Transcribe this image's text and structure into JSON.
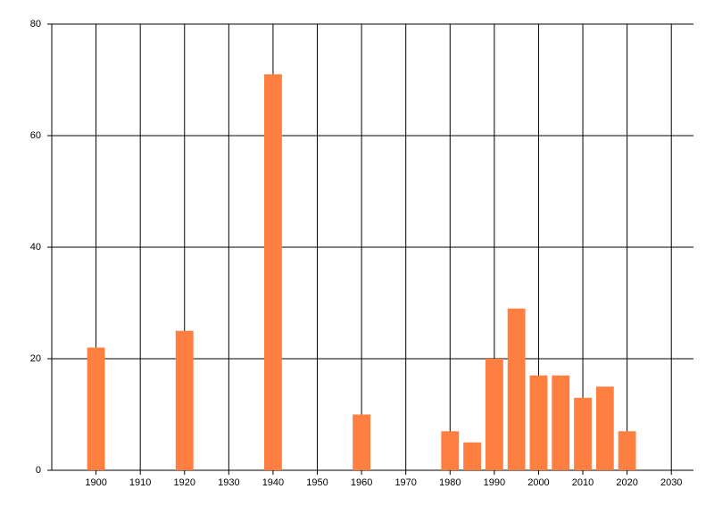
{
  "chart_data": {
    "type": "bar",
    "x": [
      1900,
      1920,
      1940,
      1960,
      1980,
      1985,
      1990,
      1995,
      2000,
      2005,
      2010,
      2015,
      2020
    ],
    "values": [
      22,
      25,
      71,
      10,
      7,
      5,
      20,
      29,
      17,
      17,
      13,
      15,
      7
    ],
    "color": "#ff7f40",
    "xlim": [
      1890,
      2035
    ],
    "xticks": [
      1900,
      1910,
      1920,
      1930,
      1940,
      1950,
      1960,
      1970,
      1980,
      1990,
      2000,
      2010,
      2020,
      2030
    ],
    "ylim": [
      0,
      80
    ],
    "yticks": [
      0,
      20,
      40,
      60,
      80
    ],
    "grid": true
  }
}
